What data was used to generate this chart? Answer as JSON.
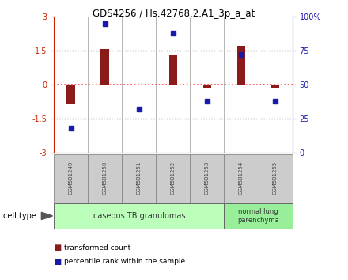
{
  "title": "GDS4256 / Hs.42768.2.A1_3p_a_at",
  "samples": [
    "GSM501249",
    "GSM501250",
    "GSM501251",
    "GSM501252",
    "GSM501253",
    "GSM501254",
    "GSM501255"
  ],
  "bar_values": [
    -0.85,
    1.58,
    0.02,
    1.28,
    -0.12,
    1.72,
    -0.15
  ],
  "dot_values": [
    18,
    95,
    32,
    88,
    38,
    72,
    38
  ],
  "ylim_left": [
    -3,
    3
  ],
  "ylim_right": [
    0,
    100
  ],
  "yticks_left": [
    -3,
    -1.5,
    0,
    1.5,
    3
  ],
  "yticks_right": [
    0,
    25,
    50,
    75,
    100
  ],
  "ytick_labels_left": [
    "-3",
    "-1.5",
    "0",
    "1.5",
    "3"
  ],
  "ytick_labels_right": [
    "0",
    "25",
    "50",
    "75",
    "100%"
  ],
  "bar_color": "#8B1A1A",
  "dot_color": "#1A1AAA",
  "zero_line_color": "#FF4444",
  "hline_color": "#222222",
  "group1_label": "caseous TB granulomas",
  "group2_label": "normal lung\nparenchyma",
  "group1_color": "#BBFFBB",
  "group2_color": "#99EE99",
  "cell_type_label": "cell type",
  "legend_bar_label": "transformed count",
  "legend_dot_label": "percentile rank within the sample",
  "bar_width": 0.25,
  "sample_box_color": "#CCCCCC",
  "sample_box_edge": "#888888",
  "label_color": "#444444"
}
